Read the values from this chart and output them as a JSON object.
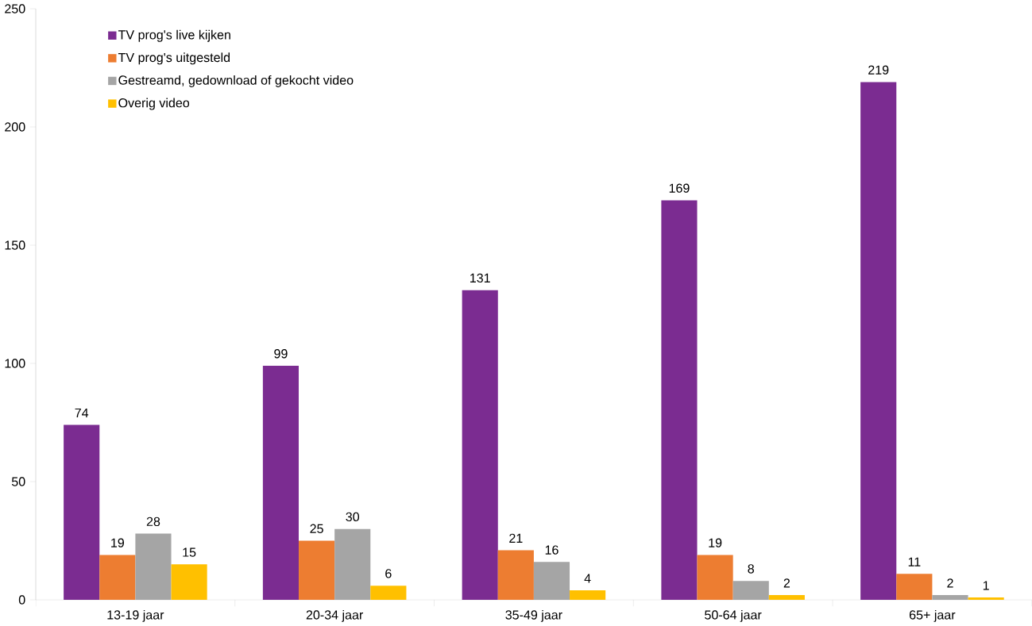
{
  "chart_data": {
    "type": "bar",
    "categories": [
      "13-19 jaar",
      "20-34 jaar",
      "35-49 jaar",
      "50-64 jaar",
      "65+ jaar"
    ],
    "series": [
      {
        "name": "TV prog's live kijken",
        "color": "#7b2c91",
        "values": [
          74,
          99,
          131,
          169,
          219
        ]
      },
      {
        "name": "TV prog's uitgesteld",
        "color": "#ed7d31",
        "values": [
          19,
          25,
          21,
          19,
          11
        ]
      },
      {
        "name": "Gestreamd, gedownload of gekocht video",
        "color": "#a5a5a5",
        "values": [
          28,
          30,
          16,
          8,
          2
        ]
      },
      {
        "name": "Overig video",
        "color": "#ffc000",
        "values": [
          15,
          6,
          4,
          2,
          1
        ]
      }
    ],
    "ylim": [
      0,
      250
    ],
    "yticks": [
      0,
      50,
      100,
      150,
      200,
      250
    ],
    "data_labels": true,
    "grid": false,
    "legend": "top left"
  }
}
